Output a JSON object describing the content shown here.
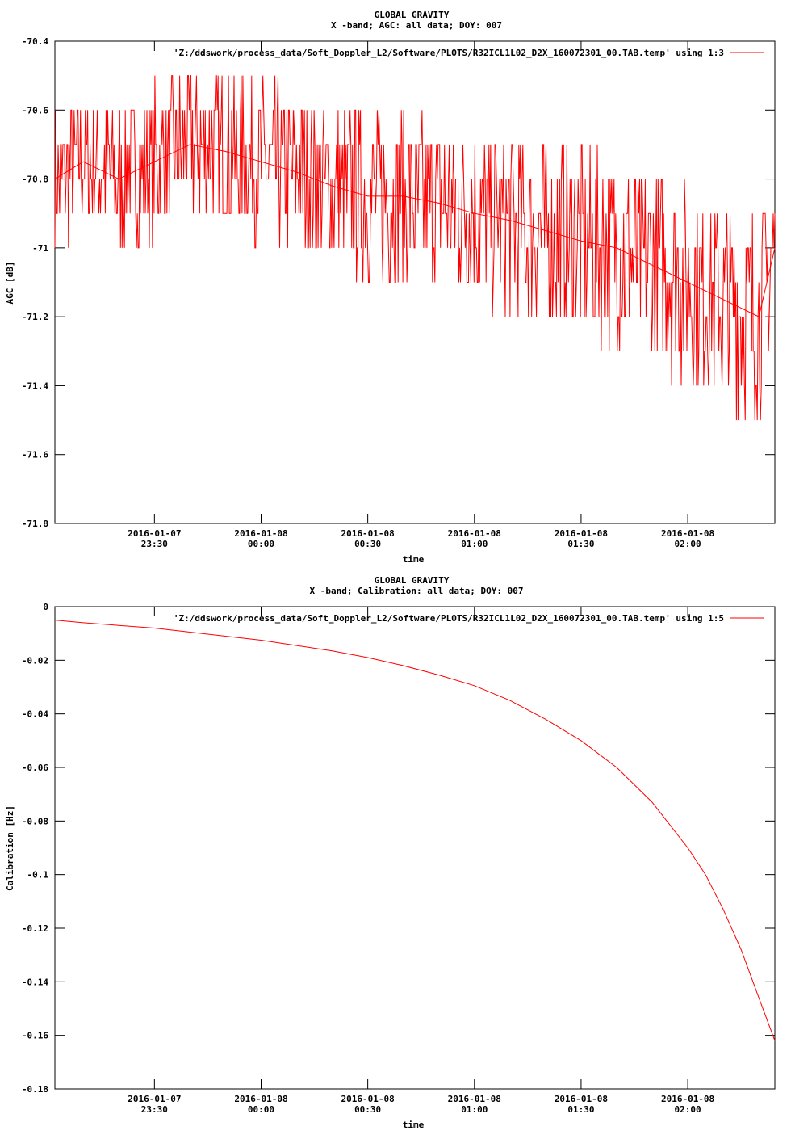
{
  "chart_data": [
    {
      "type": "line",
      "title": "GLOBAL GRAVITY",
      "subtitle": "X -band; AGC: all data; DOY: 007",
      "xlabel": "time",
      "ylabel": "AGC [dB]",
      "legend": "'Z:/ddswork/process_data/Soft_Doppler_L2/Software/PLOTS/R32ICL1L02_D2X_160072301_00.TAB.temp' using 1:3",
      "legend_position": "top-right",
      "grid": false,
      "color": "#ff0000",
      "xlim": [
        "2016-01-07T23:02:00",
        "2016-01-08T02:24:30"
      ],
      "ylim": [
        -71.8,
        -70.4
      ],
      "yticks": [
        {
          "value": -70.4,
          "label": "-70.4"
        },
        {
          "value": -70.6,
          "label": "-70.6"
        },
        {
          "value": -70.8,
          "label": "-70.8"
        },
        {
          "value": -71.0,
          "label": "-71"
        },
        {
          "value": -71.2,
          "label": "-71.2"
        },
        {
          "value": -71.4,
          "label": "-71.4"
        },
        {
          "value": -71.6,
          "label": "-71.6"
        },
        {
          "value": -71.8,
          "label": "-71.8"
        }
      ],
      "xticks": [
        {
          "value": "2016-01-07T23:30:00",
          "date": "2016-01-07",
          "time": "23:30"
        },
        {
          "value": "2016-01-08T00:00:00",
          "date": "2016-01-08",
          "time": "00:00"
        },
        {
          "value": "2016-01-08T00:30:00",
          "date": "2016-01-08",
          "time": "00:30"
        },
        {
          "value": "2016-01-08T01:00:00",
          "date": "2016-01-08",
          "time": "01:00"
        },
        {
          "value": "2016-01-08T01:30:00",
          "date": "2016-01-08",
          "time": "01:30"
        },
        {
          "value": "2016-01-08T02:00:00",
          "date": "2016-01-08",
          "time": "02:00"
        }
      ],
      "series": [
        {
          "x": [
            "2016-01-07T23:02:00",
            "2016-01-07T23:10:00",
            "2016-01-07T23:20:00",
            "2016-01-07T23:30:00",
            "2016-01-07T23:40:00",
            "2016-01-07T23:50:00",
            "2016-01-08T00:00:00",
            "2016-01-08T00:10:00",
            "2016-01-08T00:20:00",
            "2016-01-08T00:30:00",
            "2016-01-08T00:40:00",
            "2016-01-08T00:50:00",
            "2016-01-08T01:00:00",
            "2016-01-08T01:10:00",
            "2016-01-08T01:20:00",
            "2016-01-08T01:30:00",
            "2016-01-08T01:40:00",
            "2016-01-08T01:50:00",
            "2016-01-08T02:00:00",
            "2016-01-08T02:10:00",
            "2016-01-08T02:20:00",
            "2016-01-08T02:24:30"
          ],
          "values": [
            -70.8,
            -70.75,
            -70.8,
            -70.75,
            -70.7,
            -70.72,
            -70.75,
            -70.78,
            -70.82,
            -70.85,
            -70.85,
            -70.87,
            -70.9,
            -70.92,
            -70.95,
            -70.98,
            -71.0,
            -71.05,
            -71.1,
            -71.15,
            -71.2,
            -71.0
          ]
        }
      ]
    },
    {
      "type": "line",
      "title": "GLOBAL GRAVITY",
      "subtitle": "X -band; Calibration: all data; DOY: 007",
      "xlabel": "time",
      "ylabel": "Calibration [Hz]",
      "legend": "'Z:/ddswork/process_data/Soft_Doppler_L2/Software/PLOTS/R32ICL1L02_D2X_160072301_00.TAB.temp' using 1:5",
      "legend_position": "top-right",
      "grid": false,
      "color": "#ff0000",
      "xlim": [
        "2016-01-07T23:02:00",
        "2016-01-08T02:24:30"
      ],
      "ylim": [
        -0.18,
        0
      ],
      "yticks": [
        {
          "value": 0,
          "label": "0"
        },
        {
          "value": -0.02,
          "label": "-0.02"
        },
        {
          "value": -0.04,
          "label": "-0.04"
        },
        {
          "value": -0.06,
          "label": "-0.06"
        },
        {
          "value": -0.08,
          "label": "-0.08"
        },
        {
          "value": -0.1,
          "label": "-0.1"
        },
        {
          "value": -0.12,
          "label": "-0.12"
        },
        {
          "value": -0.14,
          "label": "-0.14"
        },
        {
          "value": -0.16,
          "label": "-0.16"
        },
        {
          "value": -0.18,
          "label": "-0.18"
        }
      ],
      "xticks": [
        {
          "value": "2016-01-07T23:30:00",
          "date": "2016-01-07",
          "time": "23:30"
        },
        {
          "value": "2016-01-08T00:00:00",
          "date": "2016-01-08",
          "time": "00:00"
        },
        {
          "value": "2016-01-08T00:30:00",
          "date": "2016-01-08",
          "time": "00:30"
        },
        {
          "value": "2016-01-08T01:00:00",
          "date": "2016-01-08",
          "time": "01:00"
        },
        {
          "value": "2016-01-08T01:30:00",
          "date": "2016-01-08",
          "time": "01:30"
        },
        {
          "value": "2016-01-08T02:00:00",
          "date": "2016-01-08",
          "time": "02:00"
        }
      ],
      "series": [
        {
          "x": [
            "2016-01-07T23:02:00",
            "2016-01-07T23:10:00",
            "2016-01-07T23:20:00",
            "2016-01-07T23:30:00",
            "2016-01-07T23:40:00",
            "2016-01-07T23:50:00",
            "2016-01-08T00:00:00",
            "2016-01-08T00:10:00",
            "2016-01-08T00:20:00",
            "2016-01-08T00:30:00",
            "2016-01-08T00:40:00",
            "2016-01-08T00:50:00",
            "2016-01-08T01:00:00",
            "2016-01-08T01:10:00",
            "2016-01-08T01:20:00",
            "2016-01-08T01:30:00",
            "2016-01-08T01:40:00",
            "2016-01-08T01:50:00",
            "2016-01-08T02:00:00",
            "2016-01-08T02:05:00",
            "2016-01-08T02:10:00",
            "2016-01-08T02:15:00",
            "2016-01-08T02:20:00",
            "2016-01-08T02:24:30"
          ],
          "values": [
            -0.005,
            -0.006,
            -0.007,
            -0.008,
            -0.0095,
            -0.011,
            -0.0125,
            -0.0145,
            -0.0165,
            -0.019,
            -0.022,
            -0.0255,
            -0.0295,
            -0.035,
            -0.042,
            -0.05,
            -0.06,
            -0.073,
            -0.09,
            -0.1,
            -0.113,
            -0.128,
            -0.146,
            -0.162
          ]
        }
      ]
    }
  ]
}
